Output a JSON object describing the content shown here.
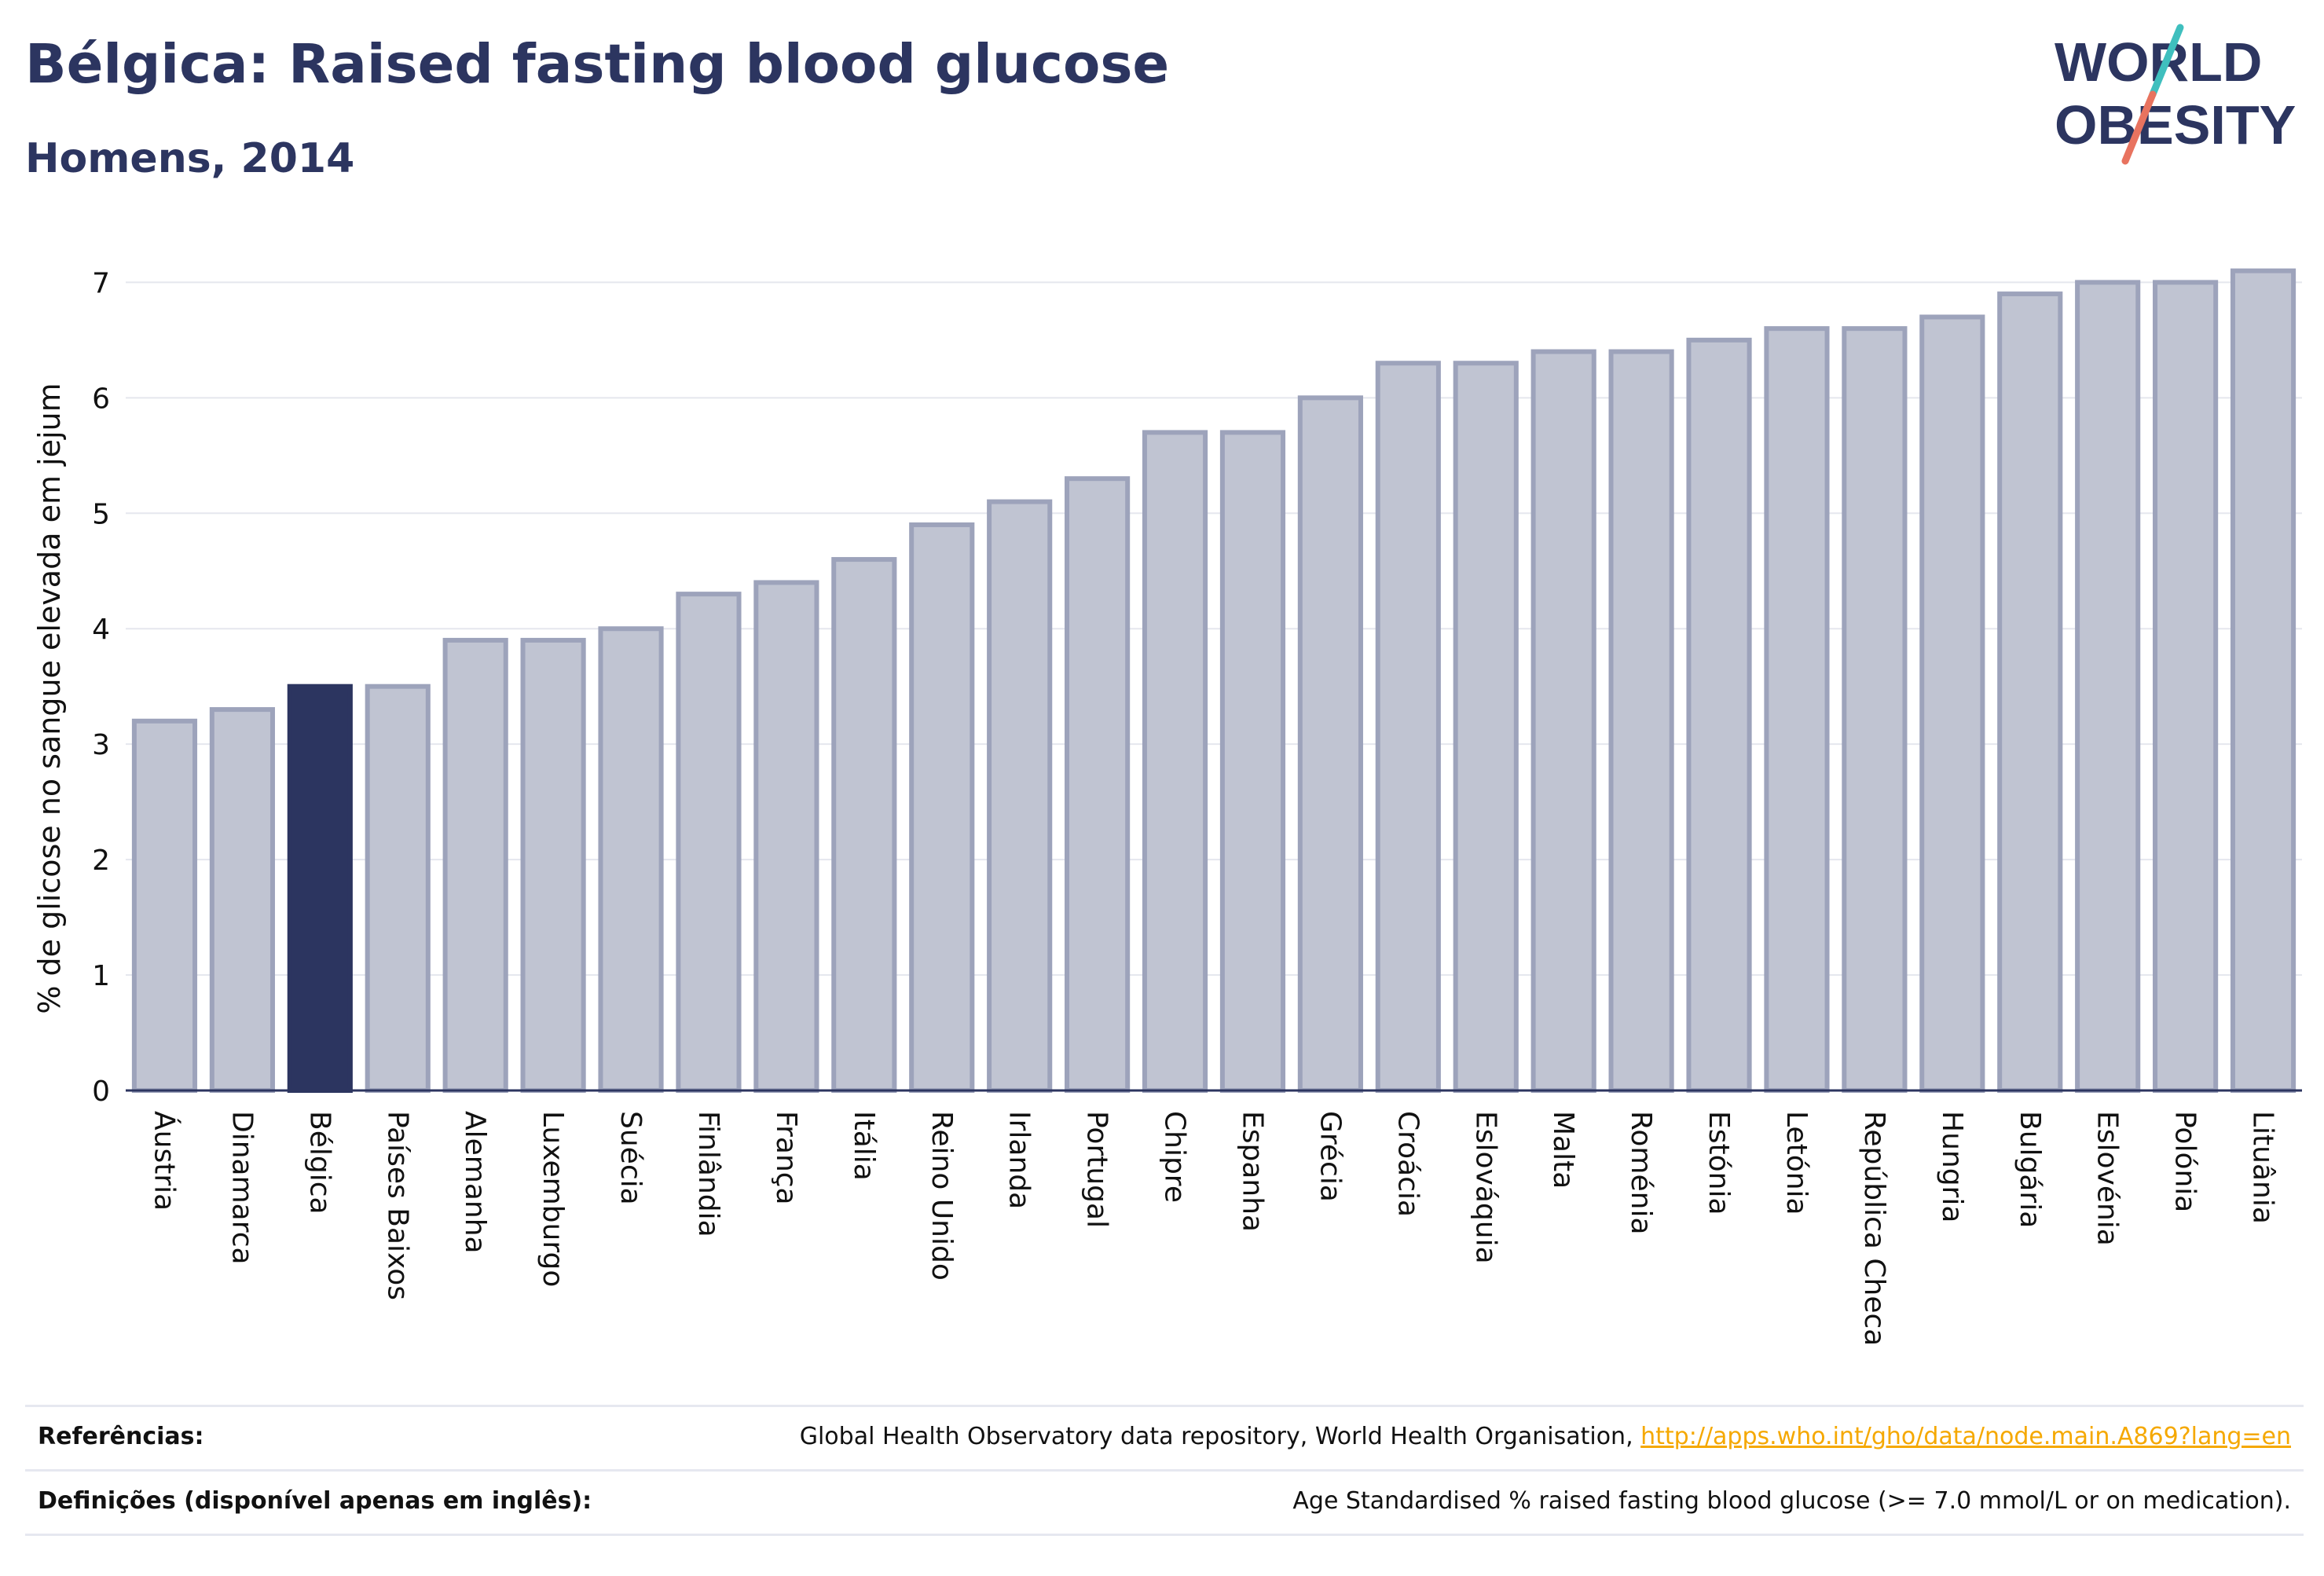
{
  "header": {
    "title": "Bélgica: Raised fasting blood glucose",
    "subtitle": "Homens, 2014"
  },
  "logo": {
    "line1": "WORLD",
    "line2": "OBESITY"
  },
  "colors": {
    "highlight": "#2c3560",
    "bar_fill": "#c0c4d2",
    "bar_stroke": "#9da3bb",
    "text": "#2c3560",
    "grid": "#e5e7ee",
    "logo_teal": "#3fbfbe",
    "logo_coral": "#e8735f",
    "link": "#f5a800"
  },
  "chart_data": {
    "type": "bar",
    "title": "Bélgica: Raised fasting blood glucose",
    "subtitle": "Homens, 2014",
    "xlabel": "",
    "ylabel": "% de glicose no sangue elevada em jejum",
    "ylim": [
      0,
      7.2
    ],
    "yticks": [
      0,
      1,
      2,
      3,
      4,
      5,
      6,
      7
    ],
    "grid": true,
    "highlight": "Bélgica",
    "categories": [
      "Áustria",
      "Dinamarca",
      "Bélgica",
      "Países Baixos",
      "Alemanha",
      "Luxemburgo",
      "Suécia",
      "Finlândia",
      "França",
      "Itália",
      "Reino Unido",
      "Irlanda",
      "Portugal",
      "Chipre",
      "Espanha",
      "Grécia",
      "Croácia",
      "Eslováquia",
      "Malta",
      "Roménia",
      "Estónia",
      "Letónia",
      "República Checa",
      "Hungria",
      "Bulgária",
      "Eslovénia",
      "Polónia",
      "Lituânia"
    ],
    "values": [
      3.2,
      3.3,
      3.5,
      3.5,
      3.9,
      3.9,
      4.0,
      4.3,
      4.4,
      4.6,
      4.9,
      5.1,
      5.3,
      5.7,
      5.7,
      6.0,
      6.3,
      6.3,
      6.4,
      6.4,
      6.5,
      6.6,
      6.6,
      6.7,
      6.9,
      7.0,
      7.0,
      7.1
    ]
  },
  "footer": {
    "references_label": "Referências:",
    "references_text": "Global Health Observatory data repository, World Health Organisation, ",
    "references_link": "http://apps.who.int/gho/data/node.main.A869?lang=en",
    "definitions_label": "Definições (disponível apenas em inglês):",
    "definitions_text": "Age Standardised % raised fasting blood glucose (>= 7.0 mmol/L or on medication)."
  }
}
